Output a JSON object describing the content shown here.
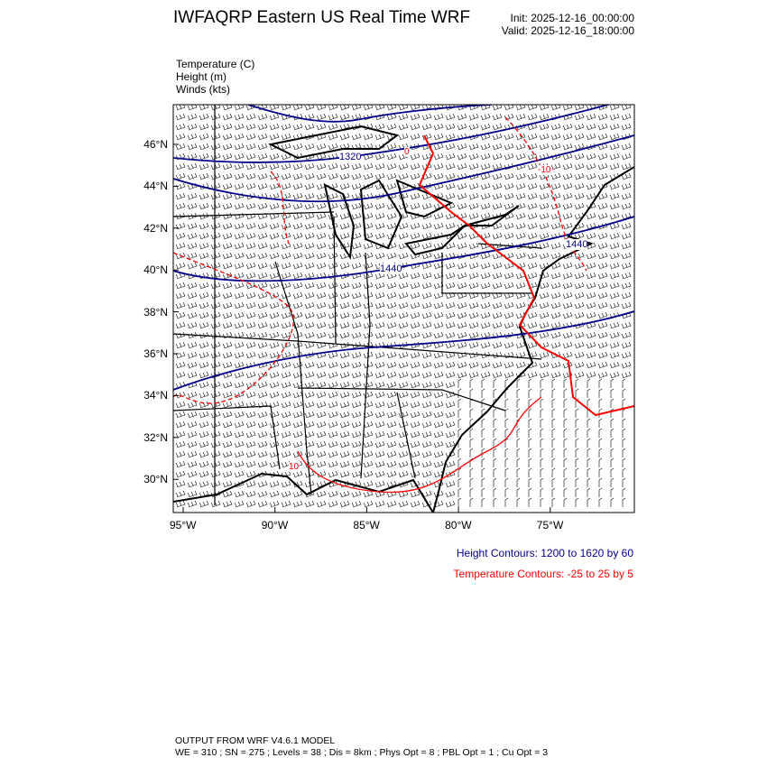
{
  "header": {
    "title": "IWFAQRP Eastern US Real Time WRF",
    "init": "Init: 2025-12-16_00:00:00",
    "valid": "Valid: 2025-12-16_18:00:00"
  },
  "fields": [
    "Temperature   (C)",
    "Height   (m)",
    "Winds   (kts)"
  ],
  "axes": {
    "lat_ticks": [
      "46°N",
      "44°N",
      "42°N",
      "40°N",
      "38°N",
      "36°N",
      "34°N",
      "32°N",
      "30°N"
    ],
    "lon_ticks": [
      "95°W",
      "90°W",
      "85°W",
      "80°W",
      "75°W"
    ]
  },
  "contour_labels": {
    "height": [
      "1320",
      "1440",
      "1440"
    ],
    "temperature": [
      "0",
      "-10",
      "10"
    ]
  },
  "legend": {
    "height": "Height Contours: 1200 to 1620 by 60",
    "temperature": "Temperature Contours: -25 to 25 by 5"
  },
  "colors": {
    "height": "#00008b",
    "temperature": "#ff0000",
    "boundaries": "#000000"
  },
  "footer": {
    "line1": "OUTPUT FROM WRF V4.6.1 MODEL",
    "line2": "WE = 310 ; SN = 275 ; Levels = 38 ; Dis = 8km ; Phys Opt = 8 ; PBL Opt = 1 ; Cu Opt = 3"
  }
}
